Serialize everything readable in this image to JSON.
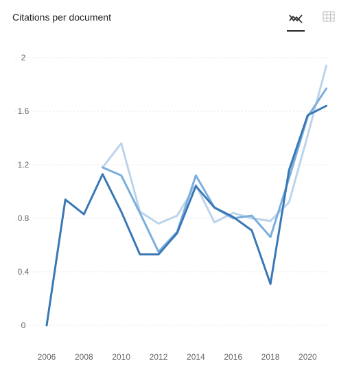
{
  "header": {
    "title": "Citations per document",
    "view_toggles": [
      {
        "icon": "line-chart-icon",
        "active": true
      },
      {
        "icon": "table-grid-icon",
        "active": false
      }
    ]
  },
  "colors": {
    "series_dark": "#3a78b5",
    "series_mid": "#7aaedd",
    "series_light": "#bcd4eb",
    "grid": "#e6e6e6"
  },
  "chart_data": {
    "type": "line",
    "title": "Citations per document",
    "xlabel": "",
    "ylabel": "",
    "x_ticks": [
      "2006",
      "2008",
      "2010",
      "2012",
      "2014",
      "2016",
      "2018",
      "2020"
    ],
    "y_ticks": [
      "0",
      "0.4",
      "0.8",
      "1.2",
      "1.6",
      "2"
    ],
    "xlim": [
      2006,
      2021.2
    ],
    "ylim": [
      0,
      2
    ],
    "grid": true,
    "legend": "none",
    "series": [
      {
        "color": "#bcd4eb",
        "x": [
          2009,
          2010,
          2011,
          2012,
          2013,
          2014,
          2015,
          2016,
          2017,
          2018,
          2019,
          2020,
          2021
        ],
        "values": [
          1.18,
          1.36,
          0.85,
          0.76,
          0.82,
          1.05,
          0.77,
          0.84,
          0.8,
          0.78,
          0.92,
          1.42,
          1.94
        ]
      },
      {
        "color": "#7aaedd",
        "x": [
          2009,
          2010,
          2011,
          2012,
          2013,
          2014,
          2015,
          2016,
          2017,
          2018,
          2019,
          2020,
          2021
        ],
        "values": [
          1.18,
          1.12,
          0.84,
          0.55,
          0.7,
          1.12,
          0.88,
          0.8,
          0.82,
          0.66,
          1.1,
          1.56,
          1.77
        ]
      },
      {
        "color": "#3a78b5",
        "x": [
          2006,
          2007,
          2008,
          2009,
          2010,
          2011,
          2012,
          2013,
          2014,
          2015,
          2016,
          2017,
          2018,
          2019,
          2020,
          2021
        ],
        "values": [
          0.0,
          0.94,
          0.83,
          1.13,
          0.85,
          0.53,
          0.53,
          0.69,
          1.04,
          0.88,
          0.81,
          0.71,
          0.31,
          1.16,
          1.57,
          1.64
        ]
      }
    ]
  }
}
